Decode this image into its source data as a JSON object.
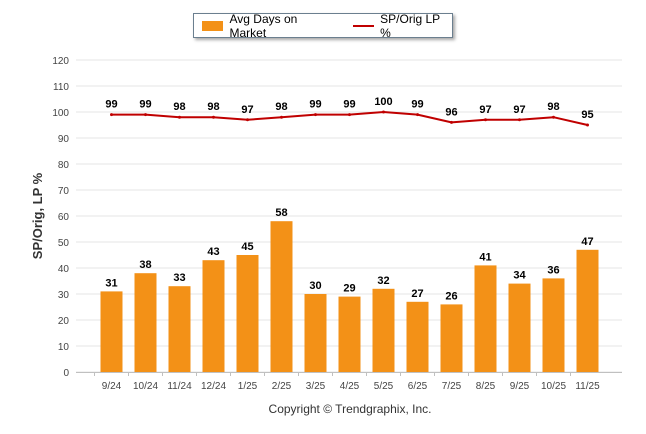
{
  "legend": {
    "bar_label": "Avg Days on Market",
    "line_label": "SP/Orig LP %"
  },
  "copyright": "Copyright © Trendgraphix, Inc.",
  "colors": {
    "bar": "#f39117",
    "line": "#c00000",
    "grid": "#e4e4e4"
  },
  "chart_data": {
    "type": "bar",
    "title": "",
    "xlabel": "",
    "ylabel": "SP/Orig, LP %",
    "ylim": [
      0,
      120
    ],
    "yticks": [
      0,
      10,
      20,
      30,
      40,
      50,
      60,
      70,
      80,
      90,
      100,
      110,
      120
    ],
    "grid": true,
    "legend_position": "top-center",
    "categories": [
      "9/24",
      "10/24",
      "11/24",
      "12/24",
      "1/25",
      "2/25",
      "3/25",
      "4/25",
      "5/25",
      "6/25",
      "7/25",
      "8/25",
      "9/25",
      "10/25",
      "11/25"
    ],
    "series": [
      {
        "name": "Avg Days on Market",
        "type": "bar",
        "values": [
          31,
          38,
          33,
          43,
          45,
          58,
          30,
          29,
          32,
          27,
          26,
          41,
          34,
          36,
          47
        ]
      },
      {
        "name": "SP/Orig LP %",
        "type": "line",
        "values": [
          99,
          99,
          98,
          98,
          97,
          98,
          99,
          99,
          100,
          99,
          96,
          97,
          97,
          98,
          95
        ]
      }
    ]
  }
}
